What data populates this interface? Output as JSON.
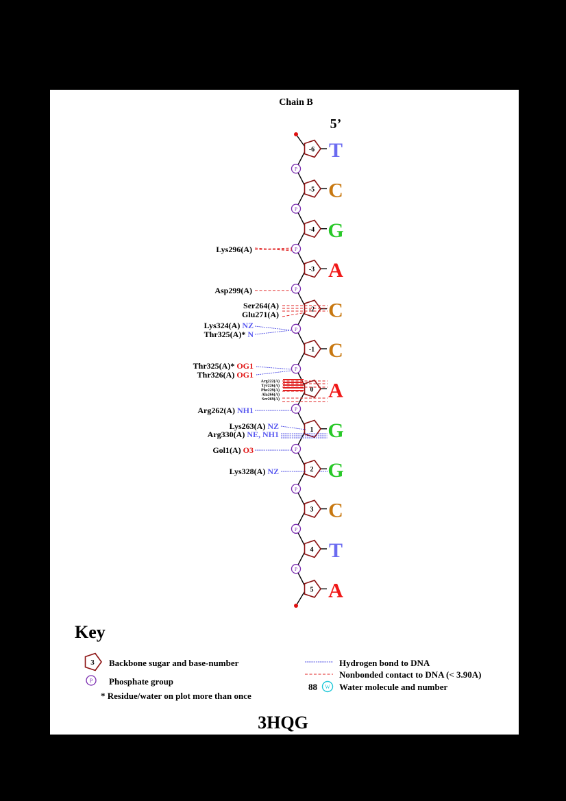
{
  "header": {
    "chain": "Chain B",
    "five_prime": "5’"
  },
  "colors": {
    "T": "#6a6af0",
    "C": "#c87810",
    "G": "#28c828",
    "A": "#f01818",
    "sugar": "#8b1010",
    "phosphate": "#7a2cb0",
    "hbond": "#3030e0",
    "nonbond": "#e02020",
    "atom_blue": "#5a5af0",
    "atom_red": "#e01010",
    "water": "#20c8d8"
  },
  "nucleotides": [
    {
      "num": "-6",
      "base": "T"
    },
    {
      "num": "-5",
      "base": "C"
    },
    {
      "num": "-4",
      "base": "G"
    },
    {
      "num": "-3",
      "base": "A"
    },
    {
      "num": "-2",
      "base": "C"
    },
    {
      "num": "-1",
      "base": "C"
    },
    {
      "num": "0",
      "base": "A"
    },
    {
      "num": "1",
      "base": "G"
    },
    {
      "num": "2",
      "base": "G"
    },
    {
      "num": "3",
      "base": "C"
    },
    {
      "num": "4",
      "base": "T"
    },
    {
      "num": "5",
      "base": "A"
    }
  ],
  "phosphate_label": "P",
  "labels": [
    {
      "res": "Lys296(A)",
      "atom": "",
      "color": ""
    },
    {
      "res": "Asp299(A)",
      "atom": "",
      "color": ""
    },
    {
      "res": "Ser264(A)",
      "atom": "",
      "color": ""
    },
    {
      "res": "Glu271(A)",
      "atom": "",
      "color": ""
    },
    {
      "res": "Lys324(A)",
      "atom": "NZ",
      "color": "blue"
    },
    {
      "res": "Thr325(A)*",
      "atom": "N",
      "color": "blue"
    },
    {
      "res": "Thr325(A)*",
      "atom": "OG1",
      "color": "red"
    },
    {
      "res": "Thr326(A)",
      "atom": "OG1",
      "color": "red"
    },
    {
      "res": "Arg262(A)",
      "atom": "NH1",
      "color": "blue"
    },
    {
      "res": "Lys263(A)",
      "atom": "NZ",
      "color": "blue"
    },
    {
      "res": "Arg330(A)",
      "atom": "NE, NH1",
      "color": "blue"
    },
    {
      "res": "Gol1(A)",
      "atom": "O3",
      "color": "red"
    },
    {
      "res": "Lys328(A)",
      "atom": "NZ",
      "color": "blue"
    }
  ],
  "small_labels": [
    "Arg222(A)",
    "Tyr226(A)",
    "Phe229(A)",
    "Ala266(A)",
    "Ser269(A)"
  ],
  "key": {
    "title": "Key",
    "sample_number": "3",
    "sugar_text": "Backbone sugar and base-number",
    "phosphate_text": "Phosphate group",
    "multi_text": "* Residue/water on plot more than once",
    "hbond_text": "Hydrogen bond to DNA",
    "nonbond_text": "Nonbonded contact to DNA (< 3.90A)",
    "water_number": "88",
    "water_symbol": "W",
    "water_text": "Water molecule and number"
  },
  "pdb_id": "3HQG"
}
